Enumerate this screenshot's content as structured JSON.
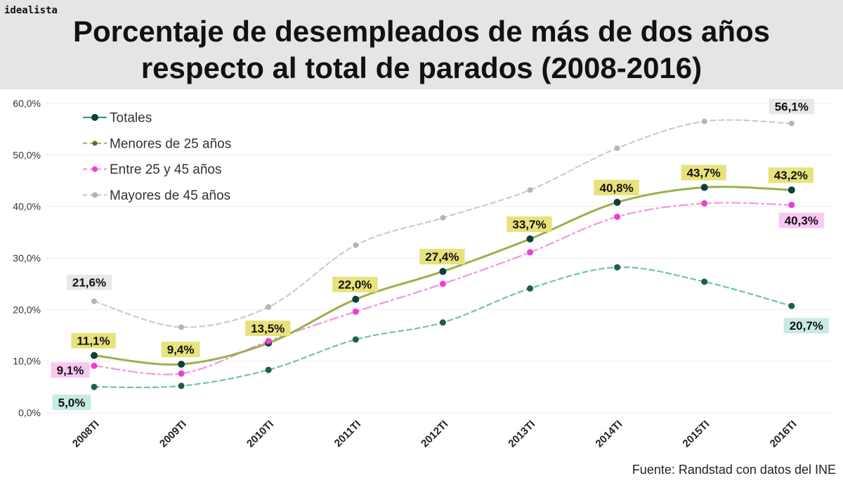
{
  "brand": "idealista",
  "chart_data": {
    "type": "line",
    "title": [
      "Porcentaje de desempleados de más de dos años",
      "respecto al total de parados (2008-2016)"
    ],
    "categories": [
      "2008TI",
      "2009TI",
      "2010TI",
      "2011TI",
      "2012TI",
      "2013TI",
      "2014TI",
      "2015TI",
      "2016TI"
    ],
    "ylim": [
      0,
      60
    ],
    "yticks": [
      0,
      10,
      20,
      30,
      40,
      50,
      60
    ],
    "ytick_labels": [
      "0,0%",
      "10,0%",
      "20,0%",
      "30,0%",
      "40,0%",
      "50,0%",
      "60,0%"
    ],
    "grid": true,
    "legend_position": "top-left",
    "series": [
      {
        "name": "Totales",
        "values": [
          11.1,
          9.4,
          13.5,
          22.0,
          27.4,
          33.7,
          40.8,
          43.7,
          43.2
        ],
        "line_color": "#9cb04a",
        "dot_color": "#0f3d3e",
        "label_bg": "#e7e27c",
        "legend_line_color": "#3b9a87",
        "legend_dot_color": "#0f3d3e",
        "labels": [
          {
            "index": 0,
            "text": "11,1%"
          },
          {
            "index": 1,
            "text": "9,4%"
          },
          {
            "index": 2,
            "text": "13,5%"
          },
          {
            "index": 3,
            "text": "22,0%"
          },
          {
            "index": 4,
            "text": "27,4%"
          },
          {
            "index": 5,
            "text": "33,7%"
          },
          {
            "index": 6,
            "text": "40,8%"
          },
          {
            "index": 7,
            "text": "43,7%"
          },
          {
            "index": 8,
            "text": "43,2%"
          }
        ]
      },
      {
        "name": "Menores de 25 años",
        "values": [
          5.0,
          5.2,
          8.3,
          14.2,
          17.5,
          24.1,
          28.2,
          25.4,
          20.7
        ],
        "line_color": "#6cc4ad",
        "dot_color": "#1e5e52",
        "label_bg": "#c7ebe4",
        "legend_line_color": "#a5b65a",
        "legend_dot_color": "#5b6b2a",
        "labels": [
          {
            "index": 0,
            "text": "5,0%"
          },
          {
            "index": 8,
            "text": "20,7%"
          }
        ]
      },
      {
        "name": "Entre 25 y 45 años",
        "values": [
          9.1,
          7.6,
          13.9,
          19.6,
          25.0,
          31.1,
          38.0,
          40.6,
          40.3
        ],
        "line_color": "#f594e0",
        "dot_color": "#ee3fcf",
        "label_bg": "#f9c8f1",
        "legend_line_color": "#f594e0",
        "legend_dot_color": "#ee3fcf",
        "labels": [
          {
            "index": 0,
            "text": "9,1%"
          },
          {
            "index": 8,
            "text": "40,3%"
          }
        ]
      },
      {
        "name": "Mayores de 45 años",
        "values": [
          21.6,
          16.6,
          20.5,
          32.5,
          37.8,
          43.2,
          51.3,
          56.5,
          56.1
        ],
        "line_color": "#cccccc",
        "dot_color": "#b5b5b5",
        "label_bg": "#e8e8e8",
        "legend_line_color": "#c9c9c9",
        "legend_dot_color": "#b0b0b0",
        "labels": [
          {
            "index": 0,
            "text": "21,6%"
          },
          {
            "index": 8,
            "text": "56,1%"
          }
        ]
      }
    ]
  },
  "source": "Fuente: Randstad con datos del INE"
}
